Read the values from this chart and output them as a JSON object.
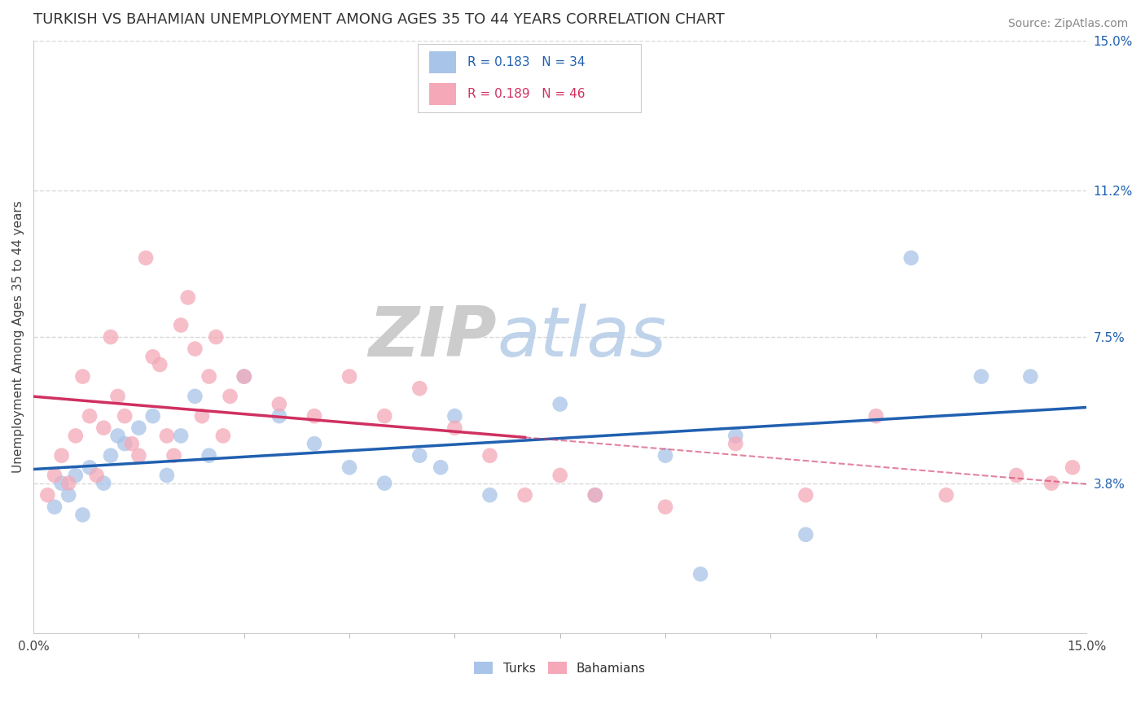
{
  "title": "TURKISH VS BAHAMIAN UNEMPLOYMENT AMONG AGES 35 TO 44 YEARS CORRELATION CHART",
  "source": "Source: ZipAtlas.com",
  "ylabel": "Unemployment Among Ages 35 to 44 years",
  "xlim": [
    0.0,
    15.0
  ],
  "ylim": [
    0.0,
    15.0
  ],
  "ytick_labels_right": [
    "3.8%",
    "7.5%",
    "11.2%",
    "15.0%"
  ],
  "ytick_vals_right": [
    3.8,
    7.5,
    11.2,
    15.0
  ],
  "turks_color": "#a8c4e8",
  "bahamians_color": "#f4a8b8",
  "turks_line_color": "#2060b0",
  "bahamians_line_color": "#d03060",
  "turks_R": 0.183,
  "turks_N": 34,
  "bahamians_R": 0.189,
  "bahamians_N": 46,
  "turks_x": [
    0.3,
    0.4,
    0.5,
    0.6,
    0.7,
    0.8,
    1.0,
    1.1,
    1.2,
    1.3,
    1.5,
    1.7,
    1.9,
    2.1,
    2.3,
    2.5,
    3.0,
    3.5,
    4.0,
    4.5,
    5.0,
    5.5,
    5.8,
    6.0,
    6.5,
    7.5,
    8.0,
    9.0,
    9.5,
    10.0,
    11.0,
    12.5,
    13.5,
    14.2
  ],
  "turks_y": [
    3.2,
    3.8,
    3.5,
    4.0,
    3.0,
    4.2,
    3.8,
    4.5,
    5.0,
    4.8,
    5.2,
    5.5,
    4.0,
    5.0,
    6.0,
    4.5,
    6.5,
    5.5,
    4.8,
    4.2,
    3.8,
    4.5,
    4.2,
    5.5,
    3.5,
    5.8,
    3.5,
    4.5,
    1.5,
    5.0,
    2.5,
    9.5,
    6.5,
    6.5
  ],
  "bahamians_x": [
    0.2,
    0.3,
    0.4,
    0.5,
    0.6,
    0.7,
    0.8,
    0.9,
    1.0,
    1.1,
    1.2,
    1.3,
    1.4,
    1.5,
    1.6,
    1.7,
    1.8,
    1.9,
    2.0,
    2.1,
    2.2,
    2.3,
    2.4,
    2.5,
    2.6,
    2.7,
    2.8,
    3.0,
    3.5,
    4.0,
    4.5,
    5.0,
    5.5,
    6.0,
    6.5,
    7.0,
    7.5,
    8.0,
    9.0,
    10.0,
    11.0,
    12.0,
    13.0,
    14.0,
    14.5,
    14.8
  ],
  "bahamians_y": [
    3.5,
    4.0,
    4.5,
    3.8,
    5.0,
    6.5,
    5.5,
    4.0,
    5.2,
    7.5,
    6.0,
    5.5,
    4.8,
    4.5,
    9.5,
    7.0,
    6.8,
    5.0,
    4.5,
    7.8,
    8.5,
    7.2,
    5.5,
    6.5,
    7.5,
    5.0,
    6.0,
    6.5,
    5.8,
    5.5,
    6.5,
    5.5,
    6.2,
    5.2,
    4.5,
    3.5,
    4.0,
    3.5,
    3.2,
    4.8,
    3.5,
    5.5,
    3.5,
    4.0,
    3.8,
    4.2
  ],
  "grid_color": "#d8d8d8",
  "background_color": "#ffffff",
  "watermark_zip": "ZIP",
  "watermark_atlas": "atlas",
  "title_fontsize": 13,
  "label_fontsize": 11,
  "tick_fontsize": 11
}
